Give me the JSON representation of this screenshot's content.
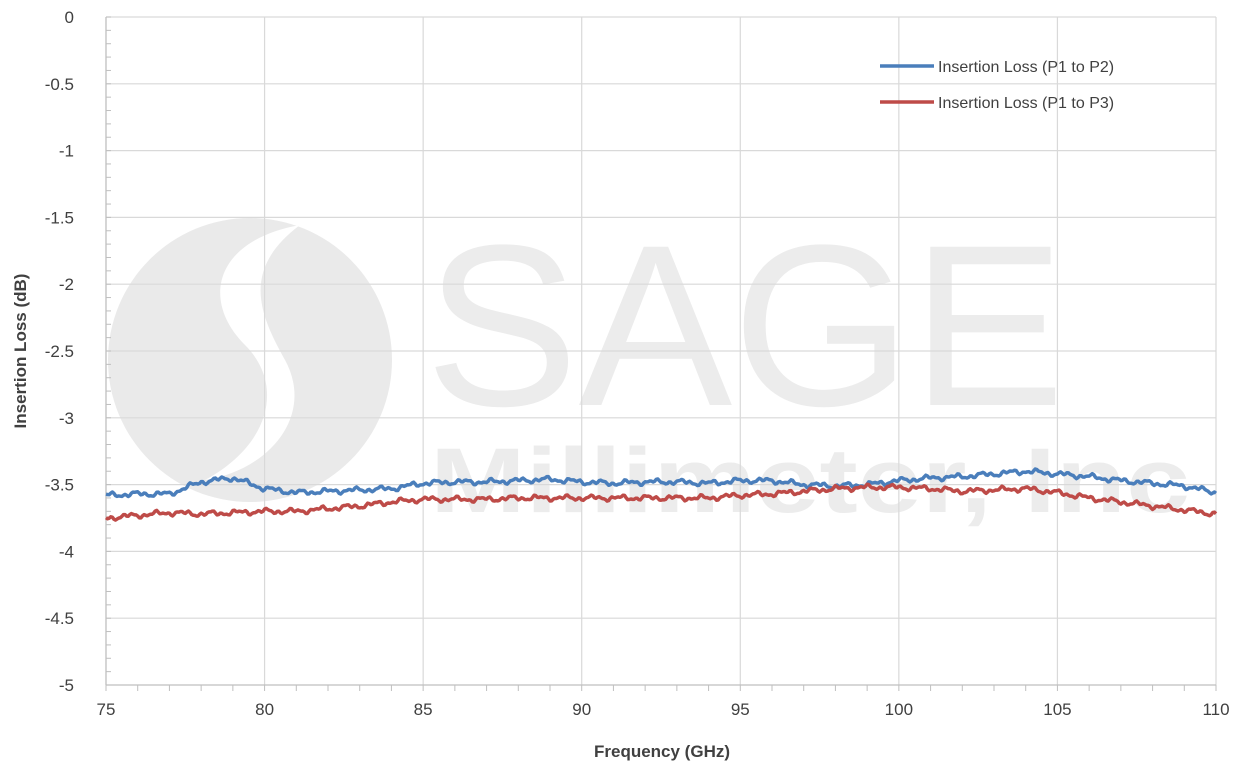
{
  "chart_data": {
    "type": "line",
    "title": "",
    "xlabel": "Frequency (GHz)",
    "ylabel": "Insertion Loss (dB)",
    "xlim": [
      75,
      110
    ],
    "ylim": [
      -5,
      0
    ],
    "x_ticks": [
      "75",
      "80",
      "85",
      "90",
      "95",
      "100",
      "105",
      "110"
    ],
    "y_ticks": [
      "0",
      "-0.5",
      "-1",
      "-1.5",
      "-2",
      "-2.5",
      "-3",
      "-3.5",
      "-4",
      "-4.5",
      "-5"
    ],
    "grid": true,
    "legend_position": "top-right",
    "watermark": {
      "primary": "SAGE",
      "secondary": "Millimeter, Inc"
    },
    "x": [
      75,
      76,
      77,
      78,
      79,
      80,
      81,
      82,
      83,
      84,
      85,
      86,
      87,
      88,
      89,
      90,
      91,
      92,
      93,
      94,
      95,
      96,
      97,
      98,
      99,
      100,
      101,
      102,
      103,
      104,
      105,
      106,
      107,
      108,
      109,
      110
    ],
    "series": [
      {
        "name": "Insertion Loss (P1 to P2)",
        "color": "#4a7ebb",
        "values": [
          -3.58,
          -3.57,
          -3.57,
          -3.48,
          -3.45,
          -3.53,
          -3.56,
          -3.55,
          -3.54,
          -3.53,
          -3.49,
          -3.48,
          -3.48,
          -3.47,
          -3.46,
          -3.48,
          -3.49,
          -3.48,
          -3.48,
          -3.49,
          -3.47,
          -3.47,
          -3.5,
          -3.51,
          -3.5,
          -3.47,
          -3.45,
          -3.44,
          -3.42,
          -3.4,
          -3.42,
          -3.44,
          -3.47,
          -3.49,
          -3.51,
          -3.56
        ]
      },
      {
        "name": "Insertion Loss (P1 to P3)",
        "color": "#be4b48",
        "values": [
          -3.75,
          -3.73,
          -3.71,
          -3.72,
          -3.71,
          -3.7,
          -3.7,
          -3.68,
          -3.66,
          -3.63,
          -3.61,
          -3.61,
          -3.61,
          -3.6,
          -3.6,
          -3.6,
          -3.6,
          -3.6,
          -3.6,
          -3.6,
          -3.58,
          -3.57,
          -3.55,
          -3.53,
          -3.52,
          -3.52,
          -3.53,
          -3.55,
          -3.54,
          -3.53,
          -3.56,
          -3.6,
          -3.63,
          -3.66,
          -3.69,
          -3.72
        ]
      }
    ]
  }
}
